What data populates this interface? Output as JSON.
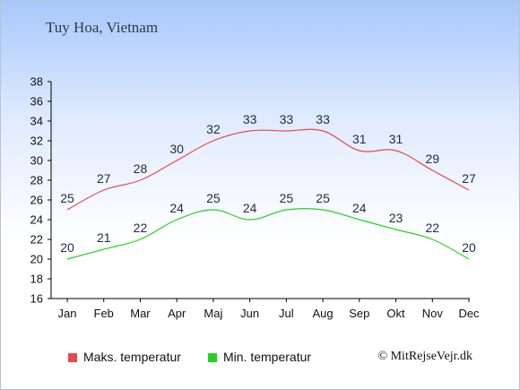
{
  "title": "Tuy Hoa, Vietnam",
  "credit": "© MitRejseVejr.dk",
  "colors": {
    "max": "#e84a4a",
    "min": "#22d422",
    "axis": "#000000",
    "grid": "#ffffff"
  },
  "legend": [
    {
      "label": "Maks. temperatur",
      "color": "#e84a4a"
    },
    {
      "label": "Min. temperatur",
      "color": "#22d422"
    }
  ],
  "chart_data": {
    "type": "line",
    "categories": [
      "Jan",
      "Feb",
      "Mar",
      "Apr",
      "Maj",
      "Jun",
      "Jul",
      "Aug",
      "Sep",
      "Okt",
      "Nov",
      "Dec"
    ],
    "series": [
      {
        "name": "Maks. temperatur",
        "values": [
          25,
          27,
          28,
          30,
          32,
          33,
          33,
          33,
          31,
          31,
          29,
          27
        ]
      },
      {
        "name": "Min. temperatur",
        "values": [
          20,
          21,
          22,
          24,
          25,
          24,
          25,
          25,
          24,
          23,
          22,
          20
        ]
      }
    ],
    "ylim": [
      16,
      38
    ],
    "yticks": [
      16,
      18,
      20,
      22,
      24,
      26,
      28,
      30,
      32,
      34,
      36,
      38
    ],
    "grid": false,
    "legend_position": "bottom"
  }
}
